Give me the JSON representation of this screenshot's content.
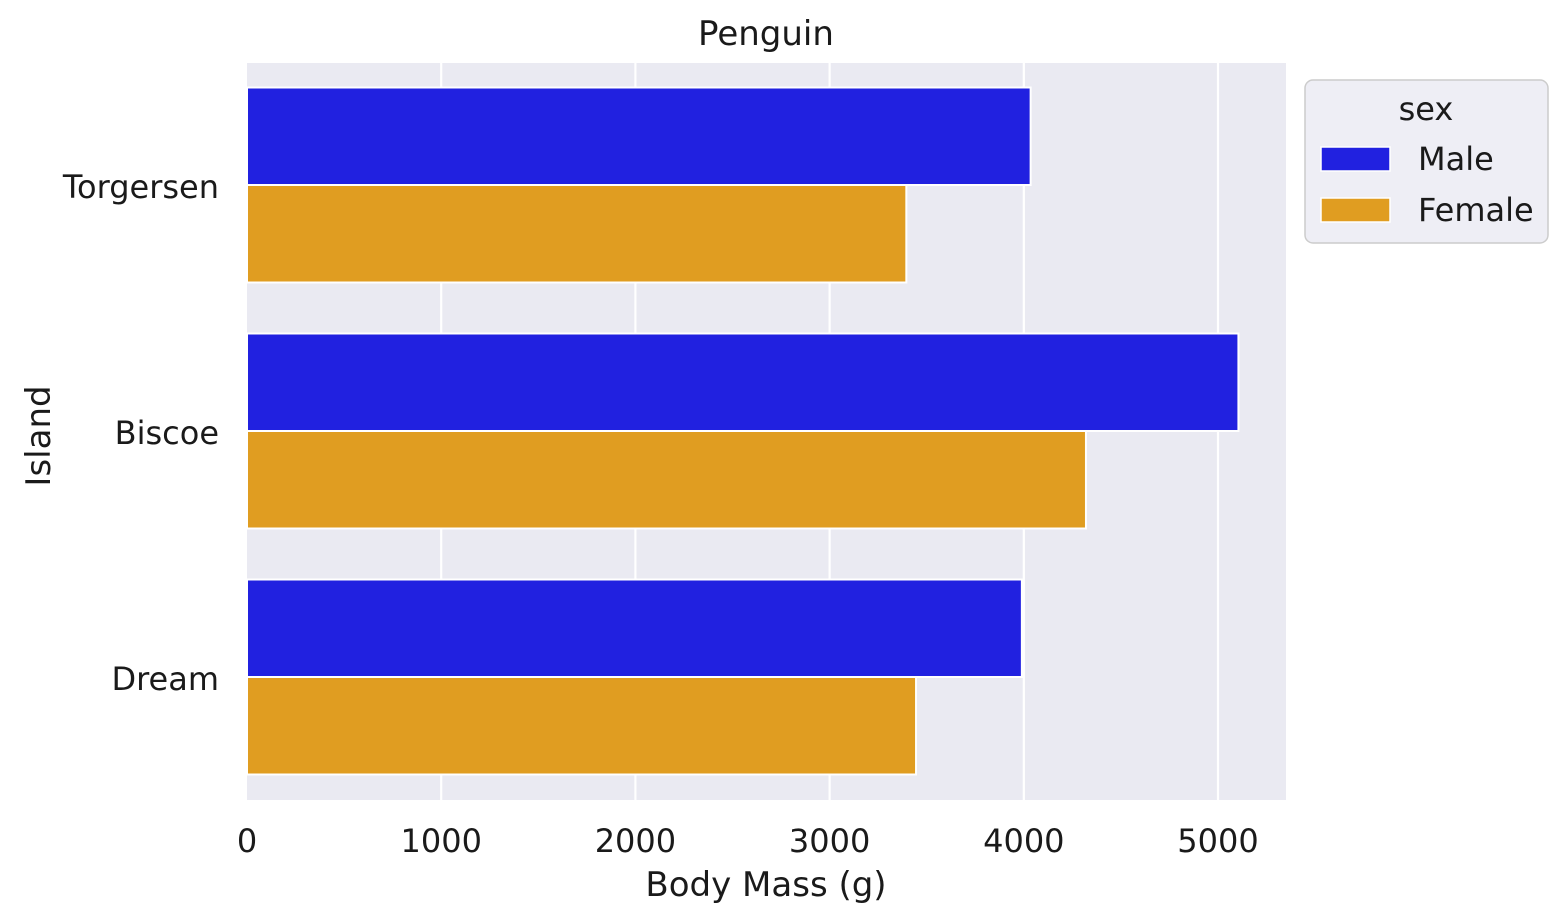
{
  "chart_data": {
    "type": "bar",
    "orientation": "horizontal",
    "title": "Penguin",
    "xlabel": "Body Mass (g)",
    "ylabel": "Island",
    "categories": [
      "Torgersen",
      "Biscoe",
      "Dream"
    ],
    "series": [
      {
        "name": "Male",
        "color": "#2121e0",
        "values": [
          4035,
          5105,
          3990
        ]
      },
      {
        "name": "Female",
        "color": "#e09d21",
        "values": [
          3395,
          4320,
          3445
        ]
      }
    ],
    "xlim": [
      0,
      5350
    ],
    "xticks": [
      0,
      1000,
      2000,
      3000,
      4000,
      5000
    ],
    "grid": true,
    "legend": {
      "title": "sex",
      "placement": "outside-top-right"
    },
    "colors": {
      "plot_background": "#eaeaf2",
      "grid": "#ffffff",
      "bar_edge": "#ffffff"
    }
  }
}
